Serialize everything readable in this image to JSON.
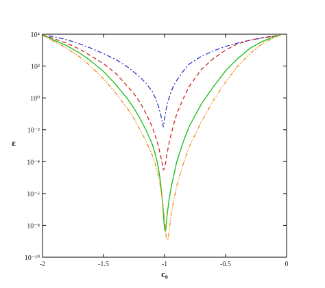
{
  "chart_data": {
    "type": "line",
    "title": "",
    "xlabel": "c₀",
    "ylabel": "ε",
    "y_scale": "log",
    "xlim": [
      -2,
      0
    ],
    "ylim": [
      1e-10,
      10000
    ],
    "grid": false,
    "x_ticks": [
      "-2",
      "-1.5",
      "-1",
      "-0.5",
      "0"
    ],
    "y_ticks": [
      "10⁴",
      "10²",
      "10⁰",
      "10⁻²",
      "10⁻⁴",
      "10⁻⁶",
      "10⁻⁸",
      "10⁻¹⁰"
    ],
    "series": [
      {
        "color": "#3333cc",
        "dash": "dash-dot",
        "x": [
          -1.95,
          -1.9,
          -1.8,
          -1.7,
          -1.6,
          -1.5,
          -1.4,
          -1.3,
          -1.2,
          -1.15,
          -1.1,
          -1.07,
          -1.05,
          -1.03,
          -1.02,
          -1.01,
          -1.0,
          -0.99,
          -0.97,
          -0.95,
          -0.93,
          -0.9,
          -0.85,
          -0.8,
          -0.7,
          -0.6,
          -0.5,
          -0.4,
          -0.3,
          -0.2,
          -0.1,
          -0.05
        ],
        "y": [
          8000,
          6800,
          4500,
          2500,
          1300,
          600,
          260,
          85,
          20,
          8,
          2.5,
          0.8,
          0.3,
          0.08,
          0.035,
          0.015,
          0.05,
          0.15,
          0.7,
          2,
          5,
          13,
          45,
          130,
          400,
          900,
          1700,
          2800,
          4200,
          5800,
          7500,
          8500
        ]
      },
      {
        "color": "#cc2222",
        "dash": "dash",
        "x": [
          -2.0,
          -1.95,
          -1.9,
          -1.8,
          -1.7,
          -1.6,
          -1.5,
          -1.4,
          -1.3,
          -1.25,
          -1.2,
          -1.15,
          -1.1,
          -1.07,
          -1.05,
          -1.03,
          -1.02,
          -1.01,
          -1.0,
          -0.99,
          -0.98,
          -0.96,
          -0.94,
          -0.92,
          -0.9,
          -0.85,
          -0.8,
          -0.7,
          -0.6,
          -0.5,
          -0.4,
          -0.3,
          -0.2,
          -0.1,
          -0.05
        ],
        "y": [
          9000,
          7000,
          5000,
          2700,
          1200,
          420,
          140,
          35,
          5,
          1.8,
          0.5,
          0.1,
          0.015,
          0.003,
          0.0009,
          0.0002,
          8e-05,
          3e-05,
          4e-05,
          0.0001,
          0.0003,
          0.002,
          0.008,
          0.03,
          0.1,
          0.8,
          5,
          60,
          300,
          1000,
          2500,
          4200,
          6000,
          7800,
          8600
        ]
      },
      {
        "color": "#11bb11",
        "dash": "solid",
        "x": [
          -2.0,
          -1.95,
          -1.9,
          -1.8,
          -1.7,
          -1.6,
          -1.5,
          -1.4,
          -1.3,
          -1.25,
          -1.2,
          -1.15,
          -1.1,
          -1.07,
          -1.05,
          -1.04,
          -1.03,
          -1.02,
          -1.01,
          -1.0,
          -0.99,
          -0.98,
          -0.96,
          -0.94,
          -0.92,
          -0.9,
          -0.85,
          -0.8,
          -0.7,
          -0.6,
          -0.5,
          -0.4,
          -0.3,
          -0.2,
          -0.1,
          -0.05
        ],
        "y": [
          9000,
          6200,
          4000,
          1900,
          700,
          200,
          45,
          7,
          0.8,
          0.22,
          0.05,
          0.009,
          0.0012,
          0.0002,
          4e-05,
          1.2e-05,
          3e-06,
          5e-07,
          6e-08,
          5e-09,
          5e-09,
          4e-08,
          6e-07,
          4e-06,
          2e-05,
          0.0001,
          0.0015,
          0.015,
          0.4,
          5,
          50,
          300,
          1300,
          3500,
          7000,
          8800
        ]
      },
      {
        "color": "#ee8811",
        "dash": "dash-dot-dot",
        "x": [
          -2.0,
          -1.95,
          -1.9,
          -1.8,
          -1.7,
          -1.6,
          -1.5,
          -1.4,
          -1.3,
          -1.25,
          -1.2,
          -1.15,
          -1.1,
          -1.07,
          -1.05,
          -1.04,
          -1.03,
          -1.02,
          -1.01,
          -1.0,
          -0.99,
          -0.98,
          -0.97,
          -0.96,
          -0.95,
          -0.93,
          -0.9,
          -0.85,
          -0.8,
          -0.7,
          -0.6,
          -0.5,
          -0.4,
          -0.3,
          -0.2,
          -0.1,
          -0.05
        ],
        "y": [
          8500,
          5500,
          3300,
          1300,
          400,
          90,
          16,
          2,
          0.2,
          0.05,
          0.01,
          0.0018,
          0.00025,
          5e-05,
          1.2e-05,
          5e-06,
          1.7e-06,
          5e-07,
          1.2e-07,
          2e-08,
          3e-09,
          1.2e-09,
          1.5e-09,
          6e-09,
          3e-08,
          2.5e-07,
          3e-06,
          6e-05,
          0.0008,
          0.03,
          0.7,
          10,
          100,
          600,
          2500,
          6500,
          8500
        ]
      }
    ]
  }
}
